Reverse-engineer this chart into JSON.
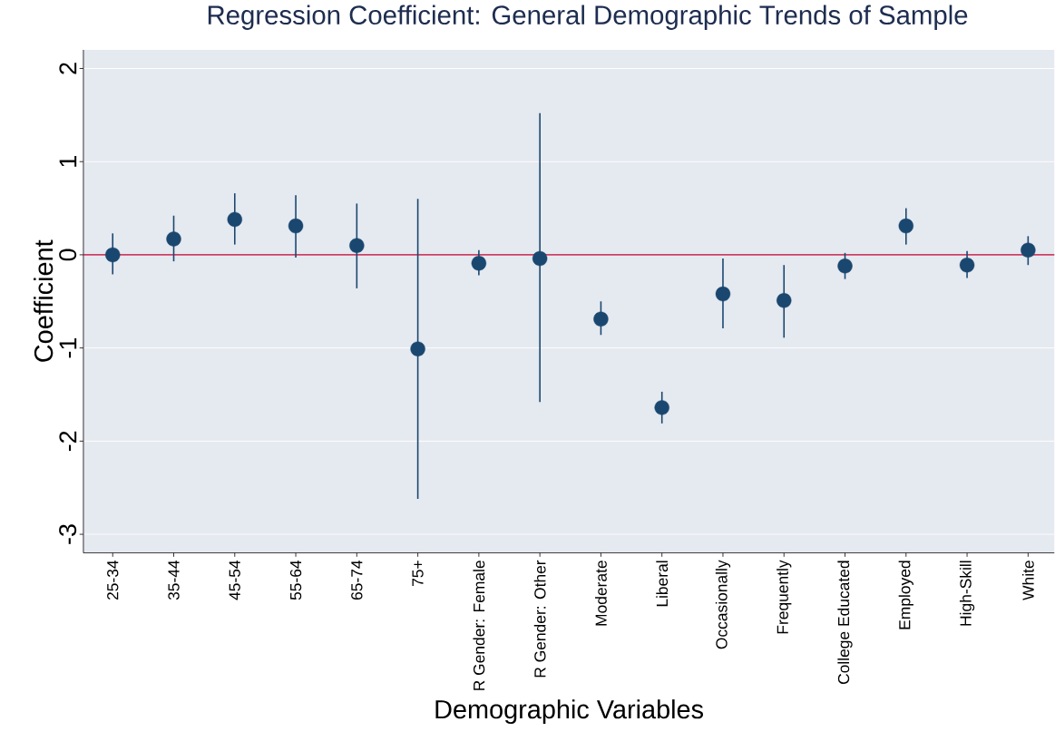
{
  "chart_data": {
    "type": "scatter",
    "title": "Regression Coefficient: General Demographic Trends of Sample",
    "xlabel": "Demographic Variables",
    "ylabel": "Coefficient",
    "categories": [
      "25-34",
      "35-44",
      "45-54",
      "55-64",
      "65-74",
      "75+",
      "R Gender: Female",
      "R Gender: Other",
      "Moderate",
      "Liberal",
      "Occasionally",
      "Frequently",
      "College Educated",
      "Employed",
      "High-Skill",
      "White"
    ],
    "values": [
      0.0,
      0.17,
      0.38,
      0.31,
      0.1,
      -1.01,
      -0.09,
      -0.04,
      -0.69,
      -1.64,
      -0.42,
      -0.49,
      -0.12,
      0.31,
      -0.11,
      0.05
    ],
    "errors": [
      [
        -0.21,
        0.23
      ],
      [
        -0.07,
        0.42
      ],
      [
        0.11,
        0.66
      ],
      [
        -0.03,
        0.64
      ],
      [
        -0.36,
        0.55
      ],
      [
        -2.62,
        0.6
      ],
      [
        -0.22,
        0.05
      ],
      [
        -1.58,
        1.52
      ],
      [
        -0.86,
        -0.5
      ],
      [
        -1.81,
        -1.47
      ],
      [
        -0.79,
        -0.04
      ],
      [
        -0.89,
        -0.11
      ],
      [
        -0.26,
        0.02
      ],
      [
        0.11,
        0.5
      ],
      [
        -0.25,
        0.04
      ],
      [
        -0.11,
        0.2
      ]
    ],
    "color": "#1a476f",
    "marker": "circle",
    "ylim": [
      -3.2,
      2.2
    ],
    "yticks": [
      -3,
      -2,
      -1,
      0,
      1,
      2
    ],
    "grid": "y",
    "ref_lines": [
      {
        "axis": "y",
        "value": 0,
        "color": "#c10534"
      }
    ]
  }
}
